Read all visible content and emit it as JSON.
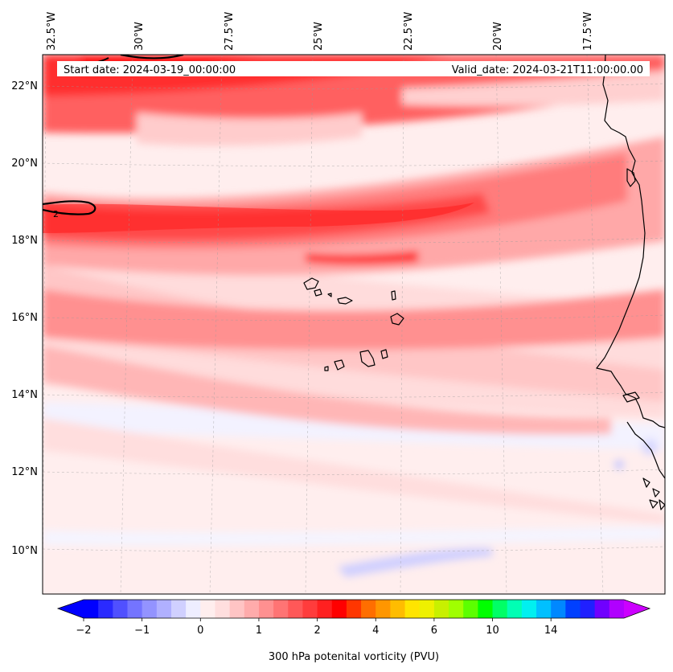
{
  "map": {
    "start_label": "Start date: 2024-03-19_00:00:00",
    "valid_label": "Valid_date: 2024-03-21T11:00:00.00",
    "lon_ticks": [
      "32.5°W",
      "30°W",
      "27.5°W",
      "25°W",
      "22.5°W",
      "20°W",
      "17.5°W"
    ],
    "lat_ticks": [
      "22°N",
      "20°N",
      "18°N",
      "16°N",
      "14°N",
      "12°N",
      "10°N"
    ],
    "contour_label": "2",
    "colorbar": {
      "title": "300 hPa potenital vorticity (PVU)",
      "tick_labels": [
        "−2",
        "−1",
        "0",
        "1",
        "2",
        "4",
        "6",
        "10",
        "14"
      ],
      "colors": [
        "#0000ff",
        "#2a2aff",
        "#5050ff",
        "#7474ff",
        "#9393ff",
        "#b0b0ff",
        "#d0d0ff",
        "#eeeeff",
        "#ffeeee",
        "#ffdede",
        "#ffc4c4",
        "#ffabab",
        "#ff9090",
        "#ff7474",
        "#ff5858",
        "#ff3c3c",
        "#ff2020",
        "#ff0000",
        "#ff3600",
        "#ff6e00",
        "#ff9600",
        "#ffbc00",
        "#ffe400",
        "#eef000",
        "#c8f000",
        "#a0ff00",
        "#5cff00",
        "#00ff00",
        "#00ff66",
        "#00ffb4",
        "#00f0f0",
        "#00c0ff",
        "#0088ff",
        "#0040ff",
        "#2020ff",
        "#7000ff",
        "#b000ff"
      ],
      "under_color": "#0000ff",
      "over_color": "#cc00ff"
    }
  }
}
